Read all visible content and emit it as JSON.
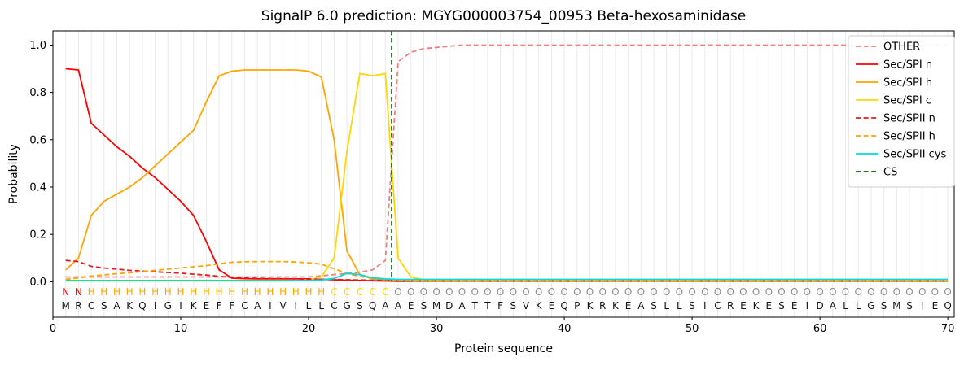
{
  "chart_data": {
    "type": "line",
    "title": "SignalP 6.0 prediction: MGYG000003754_00953 Beta-hexosaminidase",
    "xlabel": "Protein sequence",
    "ylabel": "Probability",
    "xlim": [
      0,
      70.5
    ],
    "ylim": [
      -0.15,
      1.06
    ],
    "x_ticks": [
      0,
      10,
      20,
      30,
      40,
      50,
      60,
      70
    ],
    "y_ticks": [
      0,
      0.2,
      0.4,
      0.6,
      0.8,
      1.0
    ],
    "x_unit": "residue index 1-70",
    "grid_color": "#e9e9e9",
    "legend_position": "upper right",
    "series": [
      {
        "name": "OTHER",
        "color": "#f08080",
        "dash": "dashed",
        "values": [
          0.02,
          0.02,
          0.02,
          0.02,
          0.02,
          0.02,
          0.02,
          0.02,
          0.02,
          0.02,
          0.02,
          0.02,
          0.02,
          0.02,
          0.02,
          0.02,
          0.02,
          0.02,
          0.02,
          0.02,
          0.025,
          0.03,
          0.035,
          0.04,
          0.05,
          0.09,
          0.93,
          0.97,
          0.985,
          0.99,
          0.995,
          1,
          1,
          1,
          1,
          1,
          1,
          1,
          1,
          1,
          1,
          1,
          1,
          1,
          1,
          1,
          1,
          1,
          1,
          1,
          1,
          1,
          1,
          1,
          1,
          1,
          1,
          1,
          1,
          1,
          1,
          1,
          1,
          1,
          1,
          1,
          1,
          1,
          1,
          1
        ]
      },
      {
        "name": "Sec/SPI n",
        "color": "#ff0000",
        "dash": "solid",
        "values": [
          0.9,
          0.895,
          0.67,
          0.62,
          0.57,
          0.53,
          0.48,
          0.44,
          0.39,
          0.34,
          0.28,
          0.17,
          0.05,
          0.015,
          0.013,
          0.012,
          0.012,
          0.012,
          0.012,
          0.012,
          0.01,
          0.008,
          0.006,
          0.005,
          0.004,
          0.003,
          0.002,
          0.002,
          0.002,
          0.002,
          0.002,
          0.002,
          0.002,
          0.002,
          0.002,
          0.002,
          0.002,
          0.002,
          0.002,
          0.002,
          0.002,
          0.002,
          0.002,
          0.002,
          0.002,
          0.002,
          0.002,
          0.002,
          0.002,
          0.002,
          0.002,
          0.002,
          0.002,
          0.002,
          0.002,
          0.002,
          0.002,
          0.002,
          0.002,
          0.002,
          0.002,
          0.002,
          0.002,
          0.002,
          0.002,
          0.002,
          0.002,
          0.002,
          0.002,
          0.002
        ]
      },
      {
        "name": "Sec/SPI h",
        "color": "#ffa500",
        "dash": "solid",
        "values": [
          0.05,
          0.1,
          0.28,
          0.34,
          0.37,
          0.4,
          0.44,
          0.49,
          0.54,
          0.59,
          0.64,
          0.76,
          0.87,
          0.89,
          0.895,
          0.895,
          0.895,
          0.895,
          0.895,
          0.89,
          0.865,
          0.6,
          0.13,
          0.03,
          0.012,
          0.008,
          0.005,
          0.003,
          0.002,
          0.002,
          0.002,
          0.002,
          0.002,
          0.002,
          0.002,
          0.002,
          0.002,
          0.002,
          0.002,
          0.002,
          0.002,
          0.002,
          0.002,
          0.002,
          0.002,
          0.002,
          0.002,
          0.002,
          0.002,
          0.002,
          0.002,
          0.002,
          0.002,
          0.002,
          0.002,
          0.002,
          0.002,
          0.002,
          0.002,
          0.002,
          0.002,
          0.002,
          0.002,
          0.002,
          0.002,
          0.002,
          0.002,
          0.002,
          0.002,
          0.002
        ]
      },
      {
        "name": "Sec/SPI c",
        "color": "#ffd700",
        "dash": "solid",
        "values": [
          0.003,
          0.003,
          0.003,
          0.003,
          0.003,
          0.003,
          0.003,
          0.003,
          0.003,
          0.003,
          0.003,
          0.003,
          0.003,
          0.003,
          0.003,
          0.003,
          0.003,
          0.003,
          0.004,
          0.008,
          0.02,
          0.1,
          0.55,
          0.88,
          0.87,
          0.88,
          0.1,
          0.02,
          0.008,
          0.005,
          0.003,
          0.003,
          0.003,
          0.003,
          0.003,
          0.003,
          0.003,
          0.003,
          0.003,
          0.003,
          0.003,
          0.003,
          0.003,
          0.003,
          0.003,
          0.003,
          0.003,
          0.003,
          0.003,
          0.003,
          0.003,
          0.003,
          0.003,
          0.003,
          0.003,
          0.003,
          0.003,
          0.003,
          0.003,
          0.003,
          0.003,
          0.003,
          0.003,
          0.003,
          0.003,
          0.003,
          0.003,
          0.003,
          0.003,
          0.003
        ]
      },
      {
        "name": "Sec/SPII n",
        "color": "#e41a1c",
        "dash": "dashed",
        "values": [
          0.09,
          0.085,
          0.065,
          0.058,
          0.053,
          0.048,
          0.045,
          0.042,
          0.039,
          0.036,
          0.032,
          0.028,
          0.023,
          0.018,
          0.016,
          0.014,
          0.013,
          0.013,
          0.012,
          0.011,
          0.01,
          0.009,
          0.008,
          0.007,
          0.006,
          0.005,
          0.004,
          0.003,
          0.003,
          0.003,
          0.003,
          0.003,
          0.003,
          0.003,
          0.003,
          0.003,
          0.003,
          0.003,
          0.003,
          0.003,
          0.003,
          0.003,
          0.003,
          0.003,
          0.003,
          0.003,
          0.003,
          0.003,
          0.003,
          0.003,
          0.003,
          0.003,
          0.003,
          0.003,
          0.003,
          0.003,
          0.003,
          0.003,
          0.003,
          0.003,
          0.003,
          0.003,
          0.003,
          0.003,
          0.003,
          0.003,
          0.003,
          0.003,
          0.003,
          0.003
        ]
      },
      {
        "name": "Sec/SPII h",
        "color": "#ffa500",
        "dash": "dashed",
        "values": [
          0.01,
          0.016,
          0.024,
          0.029,
          0.034,
          0.038,
          0.043,
          0.048,
          0.053,
          0.058,
          0.063,
          0.068,
          0.076,
          0.082,
          0.084,
          0.085,
          0.085,
          0.085,
          0.083,
          0.08,
          0.074,
          0.055,
          0.035,
          0.022,
          0.015,
          0.01,
          0.006,
          0.004,
          0.003,
          0.003,
          0.003,
          0.003,
          0.003,
          0.003,
          0.003,
          0.003,
          0.003,
          0.003,
          0.003,
          0.003,
          0.003,
          0.003,
          0.003,
          0.003,
          0.003,
          0.003,
          0.003,
          0.003,
          0.003,
          0.003,
          0.003,
          0.003,
          0.003,
          0.003,
          0.003,
          0.003,
          0.003,
          0.003,
          0.003,
          0.003,
          0.003,
          0.003,
          0.003,
          0.003,
          0.003,
          0.003,
          0.003,
          0.003,
          0.003,
          0.003
        ]
      },
      {
        "name": "Sec/SPII cys",
        "color": "#00dcdc",
        "dash": "solid",
        "values": [
          0.005,
          0.005,
          0.005,
          0.005,
          0.005,
          0.005,
          0.005,
          0.005,
          0.005,
          0.005,
          0.005,
          0.005,
          0.005,
          0.005,
          0.005,
          0.005,
          0.005,
          0.005,
          0.005,
          0.005,
          0.007,
          0.014,
          0.035,
          0.03,
          0.016,
          0.012,
          0.01,
          0.01,
          0.01,
          0.01,
          0.01,
          0.01,
          0.01,
          0.01,
          0.01,
          0.01,
          0.01,
          0.01,
          0.01,
          0.01,
          0.01,
          0.01,
          0.01,
          0.01,
          0.01,
          0.01,
          0.01,
          0.01,
          0.01,
          0.01,
          0.01,
          0.01,
          0.01,
          0.01,
          0.01,
          0.01,
          0.01,
          0.01,
          0.01,
          0.01,
          0.01,
          0.01,
          0.01,
          0.01,
          0.01,
          0.01,
          0.01,
          0.01,
          0.01,
          0.01
        ]
      }
    ],
    "cs_line": {
      "name": "CS",
      "x": 26.5,
      "color": "#006400",
      "dash": "dashed"
    }
  },
  "sequence": {
    "residues": "MRCSAKQIGIKEFFCAIVILLCGSQAAESMDATTFSVKEQPKRKEASLLSICREKESEIDALLGSMSIEQ",
    "residue_color": "#141414",
    "regions": [
      {
        "label": "N",
        "start": 1,
        "end": 2,
        "color": "#ff0000"
      },
      {
        "label": "H",
        "start": 3,
        "end": 21,
        "color": "#ffa500"
      },
      {
        "label": "C",
        "start": 22,
        "end": 26,
        "color": "#ffd700"
      },
      {
        "label": "O",
        "start": 27,
        "end": 70,
        "color": "#8f8f8f"
      }
    ]
  }
}
